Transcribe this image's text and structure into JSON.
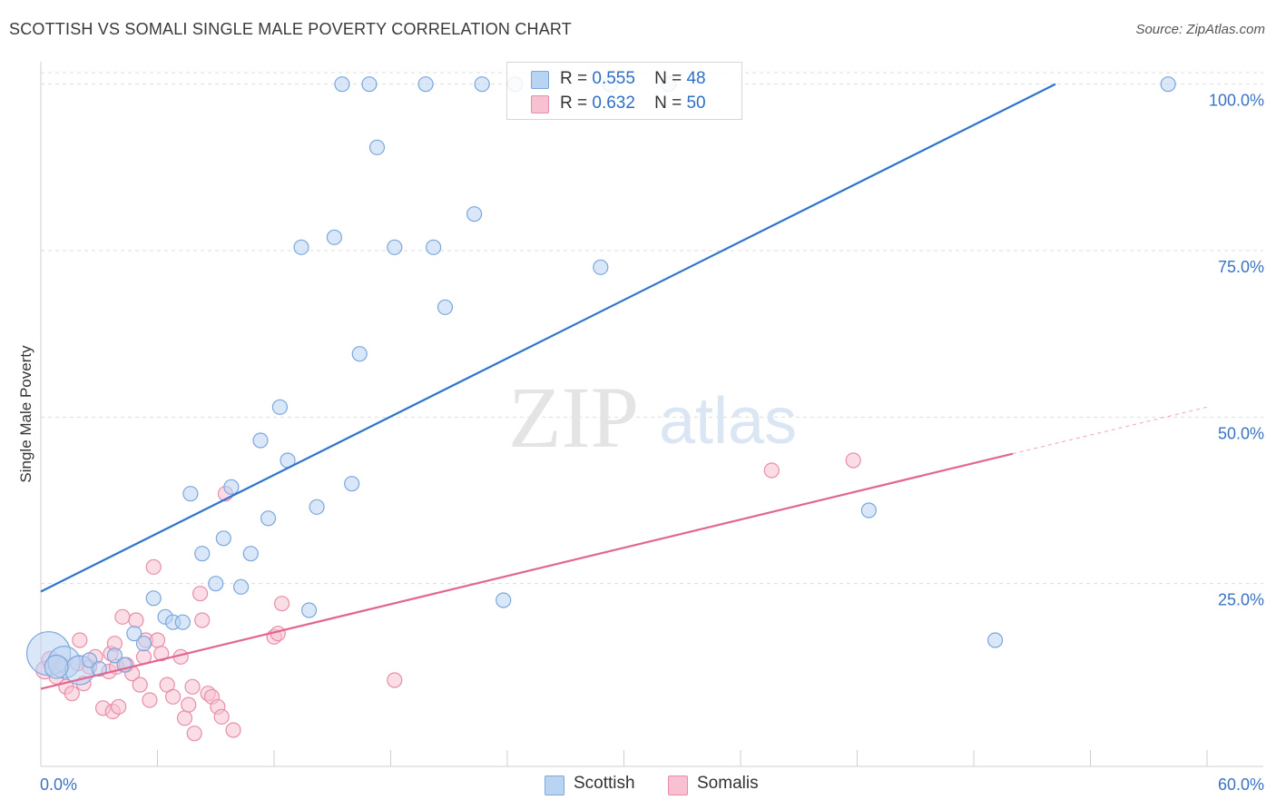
{
  "header": {
    "title": "SCOTTISH VS SOMALI SINGLE MALE POVERTY CORRELATION CHART",
    "source": "Source: ZipAtlas.com"
  },
  "watermark": {
    "zip": "ZIP",
    "atlas": "atlas"
  },
  "legend": {
    "series": [
      {
        "r_label": "R =",
        "r_value": "0.555",
        "n_label": "N =",
        "n_value": "48"
      },
      {
        "r_label": "R =",
        "r_value": "0.632",
        "n_label": "N =",
        "n_value": "50"
      }
    ]
  },
  "colors": {
    "scottish_fill": "#b9d3f3",
    "scottish_stroke": "#7aa7dc",
    "scottish_line": "#2f74cf",
    "somali_fill": "#f7c1d2",
    "somali_stroke": "#e88daa",
    "somali_line": "#e2678f",
    "axis_label": "#3a73c4",
    "grid": "#dedede"
  },
  "chart_data": {
    "type": "scatter",
    "title": "SCOTTISH VS SOMALI SINGLE MALE POVERTY CORRELATION CHART",
    "xlabel": "",
    "ylabel": "Single Male Poverty",
    "xlim": [
      0,
      60
    ],
    "ylim": [
      0,
      102
    ],
    "x_tick_labels": [
      "0.0%",
      "60.0%"
    ],
    "y_tick_labels": [
      "25.0%",
      "50.0%",
      "75.0%",
      "100.0%"
    ],
    "y_ticks": [
      25,
      50,
      75,
      100
    ],
    "grid": true,
    "legend_position": "top-center",
    "series": [
      {
        "name": "Scottish",
        "color": "#7aa7dc",
        "trend": {
          "x": [
            0,
            52.2
          ],
          "y": [
            23.8,
            100
          ]
        },
        "points": [
          {
            "x": 0.4,
            "y": 14.5,
            "s": 3
          },
          {
            "x": 1.2,
            "y": 13.2,
            "s": 2.2
          },
          {
            "x": 2.0,
            "y": 12.0,
            "s": 2
          },
          {
            "x": 2.5,
            "y": 13.5,
            "s": 1
          },
          {
            "x": 3.0,
            "y": 12.2,
            "s": 1
          },
          {
            "x": 3.8,
            "y": 14.2,
            "s": 1
          },
          {
            "x": 4.3,
            "y": 12.8,
            "s": 1
          },
          {
            "x": 4.8,
            "y": 17.5,
            "s": 1
          },
          {
            "x": 5.3,
            "y": 16.0,
            "s": 1
          },
          {
            "x": 5.8,
            "y": 22.8,
            "s": 1
          },
          {
            "x": 6.4,
            "y": 20.0,
            "s": 1
          },
          {
            "x": 6.8,
            "y": 19.2,
            "s": 1
          },
          {
            "x": 7.3,
            "y": 19.2,
            "s": 1
          },
          {
            "x": 7.7,
            "y": 38.5,
            "s": 1
          },
          {
            "x": 8.3,
            "y": 29.5,
            "s": 1
          },
          {
            "x": 9.0,
            "y": 25.0,
            "s": 1
          },
          {
            "x": 9.4,
            "y": 31.8,
            "s": 1
          },
          {
            "x": 9.8,
            "y": 39.5,
            "s": 1
          },
          {
            "x": 10.3,
            "y": 24.5,
            "s": 1
          },
          {
            "x": 10.8,
            "y": 29.5,
            "s": 1
          },
          {
            "x": 11.3,
            "y": 46.5,
            "s": 1
          },
          {
            "x": 11.7,
            "y": 34.8,
            "s": 1
          },
          {
            "x": 12.3,
            "y": 51.5,
            "s": 1
          },
          {
            "x": 12.7,
            "y": 43.5,
            "s": 1
          },
          {
            "x": 13.4,
            "y": 75.5,
            "s": 1
          },
          {
            "x": 13.8,
            "y": 21.0,
            "s": 1
          },
          {
            "x": 14.2,
            "y": 36.5,
            "s": 1
          },
          {
            "x": 15.1,
            "y": 77.0,
            "s": 1
          },
          {
            "x": 15.5,
            "y": 100.0,
            "s": 1
          },
          {
            "x": 16.0,
            "y": 40.0,
            "s": 1
          },
          {
            "x": 16.4,
            "y": 59.5,
            "s": 1
          },
          {
            "x": 16.9,
            "y": 100.0,
            "s": 1
          },
          {
            "x": 17.3,
            "y": 90.5,
            "s": 1
          },
          {
            "x": 18.2,
            "y": 75.5,
            "s": 1
          },
          {
            "x": 19.8,
            "y": 100.0,
            "s": 1
          },
          {
            "x": 20.2,
            "y": 75.5,
            "s": 1
          },
          {
            "x": 20.8,
            "y": 66.5,
            "s": 1
          },
          {
            "x": 22.3,
            "y": 80.5,
            "s": 1
          },
          {
            "x": 22.7,
            "y": 100.0,
            "s": 1
          },
          {
            "x": 23.8,
            "y": 22.5,
            "s": 1
          },
          {
            "x": 24.4,
            "y": 100.0,
            "s": 1
          },
          {
            "x": 28.8,
            "y": 72.5,
            "s": 1
          },
          {
            "x": 29.3,
            "y": 100.0,
            "s": 1
          },
          {
            "x": 32.3,
            "y": 100.0,
            "s": 1
          },
          {
            "x": 42.6,
            "y": 36.0,
            "s": 1
          },
          {
            "x": 49.1,
            "y": 16.5,
            "s": 1
          },
          {
            "x": 58.0,
            "y": 100.0,
            "s": 1
          },
          {
            "x": 0.8,
            "y": 12.5,
            "s": 1.6
          }
        ]
      },
      {
        "name": "Somalis",
        "color": "#e88daa",
        "trend": {
          "x": [
            0,
            50
          ],
          "y": [
            9.2,
            44.5
          ]
        },
        "trend_ext": {
          "x": [
            50,
            60
          ],
          "y": [
            44.5,
            51.5
          ]
        },
        "points": [
          {
            "x": 0.2,
            "y": 12.0,
            "s": 1.2
          },
          {
            "x": 0.5,
            "y": 13.5,
            "s": 1.2
          },
          {
            "x": 0.8,
            "y": 11.0,
            "s": 1
          },
          {
            "x": 1.1,
            "y": 12.8,
            "s": 1
          },
          {
            "x": 1.3,
            "y": 9.5,
            "s": 1
          },
          {
            "x": 1.6,
            "y": 8.5,
            "s": 1
          },
          {
            "x": 1.9,
            "y": 13.0,
            "s": 1
          },
          {
            "x": 2.0,
            "y": 16.5,
            "s": 1
          },
          {
            "x": 2.2,
            "y": 10.0,
            "s": 1
          },
          {
            "x": 2.5,
            "y": 12.5,
            "s": 1
          },
          {
            "x": 2.8,
            "y": 14.0,
            "s": 1
          },
          {
            "x": 3.2,
            "y": 6.3,
            "s": 1
          },
          {
            "x": 3.5,
            "y": 11.8,
            "s": 1
          },
          {
            "x": 3.6,
            "y": 14.5,
            "s": 1
          },
          {
            "x": 3.7,
            "y": 5.8,
            "s": 1
          },
          {
            "x": 3.8,
            "y": 16.0,
            "s": 1
          },
          {
            "x": 3.9,
            "y": 12.5,
            "s": 1
          },
          {
            "x": 4.0,
            "y": 6.5,
            "s": 1
          },
          {
            "x": 4.2,
            "y": 20.0,
            "s": 1
          },
          {
            "x": 4.4,
            "y": 12.8,
            "s": 1
          },
          {
            "x": 4.7,
            "y": 11.5,
            "s": 1
          },
          {
            "x": 4.9,
            "y": 19.5,
            "s": 1
          },
          {
            "x": 5.1,
            "y": 9.8,
            "s": 1
          },
          {
            "x": 5.3,
            "y": 14.0,
            "s": 1
          },
          {
            "x": 5.4,
            "y": 16.5,
            "s": 1
          },
          {
            "x": 5.6,
            "y": 7.5,
            "s": 1
          },
          {
            "x": 5.8,
            "y": 27.5,
            "s": 1
          },
          {
            "x": 6.0,
            "y": 16.5,
            "s": 1
          },
          {
            "x": 6.2,
            "y": 14.5,
            "s": 1
          },
          {
            "x": 6.5,
            "y": 9.8,
            "s": 1
          },
          {
            "x": 6.8,
            "y": 8.0,
            "s": 1
          },
          {
            "x": 7.2,
            "y": 14.0,
            "s": 1
          },
          {
            "x": 7.4,
            "y": 4.8,
            "s": 1
          },
          {
            "x": 7.6,
            "y": 6.8,
            "s": 1
          },
          {
            "x": 7.8,
            "y": 9.5,
            "s": 1
          },
          {
            "x": 7.9,
            "y": 2.5,
            "s": 1
          },
          {
            "x": 8.2,
            "y": 23.5,
            "s": 1
          },
          {
            "x": 8.3,
            "y": 19.5,
            "s": 1
          },
          {
            "x": 8.6,
            "y": 8.5,
            "s": 1
          },
          {
            "x": 8.8,
            "y": 8.0,
            "s": 1
          },
          {
            "x": 9.1,
            "y": 6.5,
            "s": 1
          },
          {
            "x": 9.3,
            "y": 5.0,
            "s": 1
          },
          {
            "x": 9.5,
            "y": 38.5,
            "s": 1
          },
          {
            "x": 9.9,
            "y": 3.0,
            "s": 1
          },
          {
            "x": 12.0,
            "y": 17.0,
            "s": 1
          },
          {
            "x": 12.2,
            "y": 17.5,
            "s": 1
          },
          {
            "x": 12.4,
            "y": 22.0,
            "s": 1
          },
          {
            "x": 18.2,
            "y": 10.5,
            "s": 1
          },
          {
            "x": 37.6,
            "y": 42.0,
            "s": 1
          },
          {
            "x": 41.8,
            "y": 43.5,
            "s": 1
          }
        ]
      }
    ]
  },
  "bottom_legend": {
    "scottish": "Scottish",
    "somalis": "Somalis"
  }
}
